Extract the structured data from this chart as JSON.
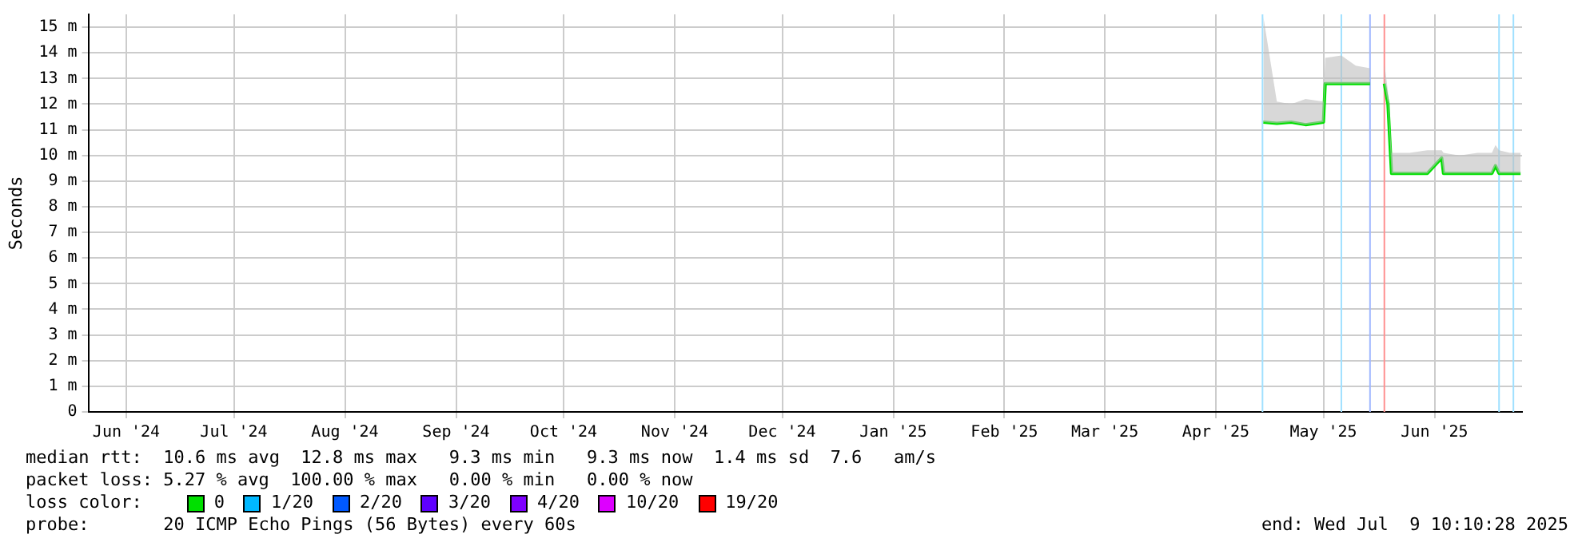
{
  "chart_data": {
    "type": "line",
    "ylabel": "Seconds",
    "legend_title": "loss color:",
    "legend": "bottom",
    "grid": true,
    "marker": "none",
    "line_style": "solid",
    "xlim": [
      "2024-06-04T10:00",
      "2025-07-09T10:00"
    ],
    "xticks": [
      {
        "value": "2024-06-15",
        "label": "Jun '24"
      },
      {
        "value": "2024-07-15",
        "label": "Jul '24"
      },
      {
        "value": "2024-08-15",
        "label": "Aug '24"
      },
      {
        "value": "2024-09-15",
        "label": "Sep '24"
      },
      {
        "value": "2024-10-15",
        "label": "Oct '24"
      },
      {
        "value": "2024-11-15",
        "label": "Nov '24"
      },
      {
        "value": "2024-12-15",
        "label": "Dec '24"
      },
      {
        "value": "2025-01-15",
        "label": "Jan '25"
      },
      {
        "value": "2025-02-15",
        "label": "Feb '25"
      },
      {
        "value": "2025-03-15",
        "label": "Mar '25"
      },
      {
        "value": "2025-04-15",
        "label": "Apr '25"
      },
      {
        "value": "2025-05-15",
        "label": "May '25"
      },
      {
        "value": "2025-06-15",
        "label": "Jun '25"
      }
    ],
    "ylim": [
      0,
      15.5
    ],
    "yticks": [
      0,
      {
        "value": 1,
        "label": "1 m"
      },
      {
        "value": 2,
        "label": "2 m"
      },
      {
        "value": 3,
        "label": "3 m"
      },
      {
        "value": 4,
        "label": "4 m"
      },
      {
        "value": 5,
        "label": "5 m"
      },
      {
        "value": 6,
        "label": "6 m"
      },
      {
        "value": 7,
        "label": "7 m"
      },
      {
        "value": 8,
        "label": "8 m"
      },
      {
        "value": 9,
        "label": "9 m"
      },
      {
        "value": 10,
        "label": "10 m"
      },
      {
        "value": 11,
        "label": "11 m"
      },
      {
        "value": 12,
        "label": "12 m"
      },
      {
        "value": 13,
        "label": "13 m"
      },
      {
        "value": 14,
        "label": "14 m"
      },
      {
        "value": 15,
        "label": "15 m"
      }
    ],
    "series": [
      {
        "name": "0",
        "color": "#00e000",
        "x": [
          "2025-04-28T06:00",
          "2025-05-02",
          "2025-05-06",
          "2025-05-10",
          "2025-05-15",
          "2025-05-15T12:00",
          "2025-05-20",
          "2025-05-24",
          "2025-05-28",
          "2025-05-30",
          "2025-06-01",
          "2025-06-02",
          "2025-06-03",
          "2025-06-08",
          "2025-06-13",
          "2025-06-17",
          "2025-06-17T12:00",
          "2025-06-22",
          "2025-06-27",
          "2025-07-01",
          "2025-07-02",
          "2025-07-03",
          "2025-07-06",
          "2025-07-09"
        ],
        "values": [
          11.3,
          11.25,
          11.3,
          11.2,
          11.3,
          12.8,
          12.8,
          12.8,
          12.8,
          null,
          12.8,
          12,
          9.3,
          9.3,
          9.3,
          9.9,
          9.3,
          9.3,
          9.3,
          9.3,
          9.6,
          9.3,
          9.3,
          9.3
        ],
        "lower": [
          11.3,
          11.25,
          11.3,
          11.2,
          11.3,
          12.8,
          12.8,
          12.8,
          12.8,
          null,
          12.8,
          12,
          9.3,
          9.3,
          9.3,
          9.9,
          9.3,
          9.3,
          9.3,
          9.3,
          9.6,
          9.3,
          9.3,
          9.3
        ],
        "upper": [
          15.4,
          12.1,
          12,
          12.2,
          12.1,
          13.8,
          13.9,
          13.5,
          13.4,
          null,
          13.6,
          12.5,
          10.1,
          10.1,
          10.2,
          10.2,
          10.1,
          10,
          10.1,
          10.1,
          10.4,
          10.2,
          10.1,
          10.1
        ]
      },
      {
        "name": "1/20",
        "color": "#00b8ff"
      },
      {
        "name": "2/20",
        "color": "#0059ff"
      },
      {
        "name": "3/20",
        "color": "#5e00ff"
      },
      {
        "name": "4/20",
        "color": "#7e00ff"
      },
      {
        "name": "10/20",
        "color": "#dd00ff"
      },
      {
        "name": "19/20",
        "color": "#ff0000"
      }
    ],
    "ref_lines": [
      {
        "axis": "x",
        "value": "2025-04-28",
        "color": "#a0e0ff"
      },
      {
        "axis": "x",
        "value": "2025-05-20",
        "color": "#a0e0ff"
      },
      {
        "axis": "x",
        "value": "2025-05-28",
        "color": "#a0b8ff"
      },
      {
        "axis": "x",
        "value": "2025-06-01",
        "color": "#ff9090"
      },
      {
        "axis": "x",
        "value": "2025-07-03",
        "color": "#a0e0ff"
      },
      {
        "axis": "x",
        "value": "2025-07-07",
        "color": "#a0e0ff"
      }
    ],
    "annotations": [
      "median rtt:  10.6 ms avg  12.8 ms max   9.3 ms min   9.3 ms now  1.4 ms sd  7.6   am/s",
      "packet loss: 5.27 % avg  100.00 % max   0.00 % min   0.00 % now",
      "probe:       20 ICMP Echo Pings (56 Bytes) every 60s",
      "end: Wed Jul  9 10:10:28 2025"
    ]
  }
}
